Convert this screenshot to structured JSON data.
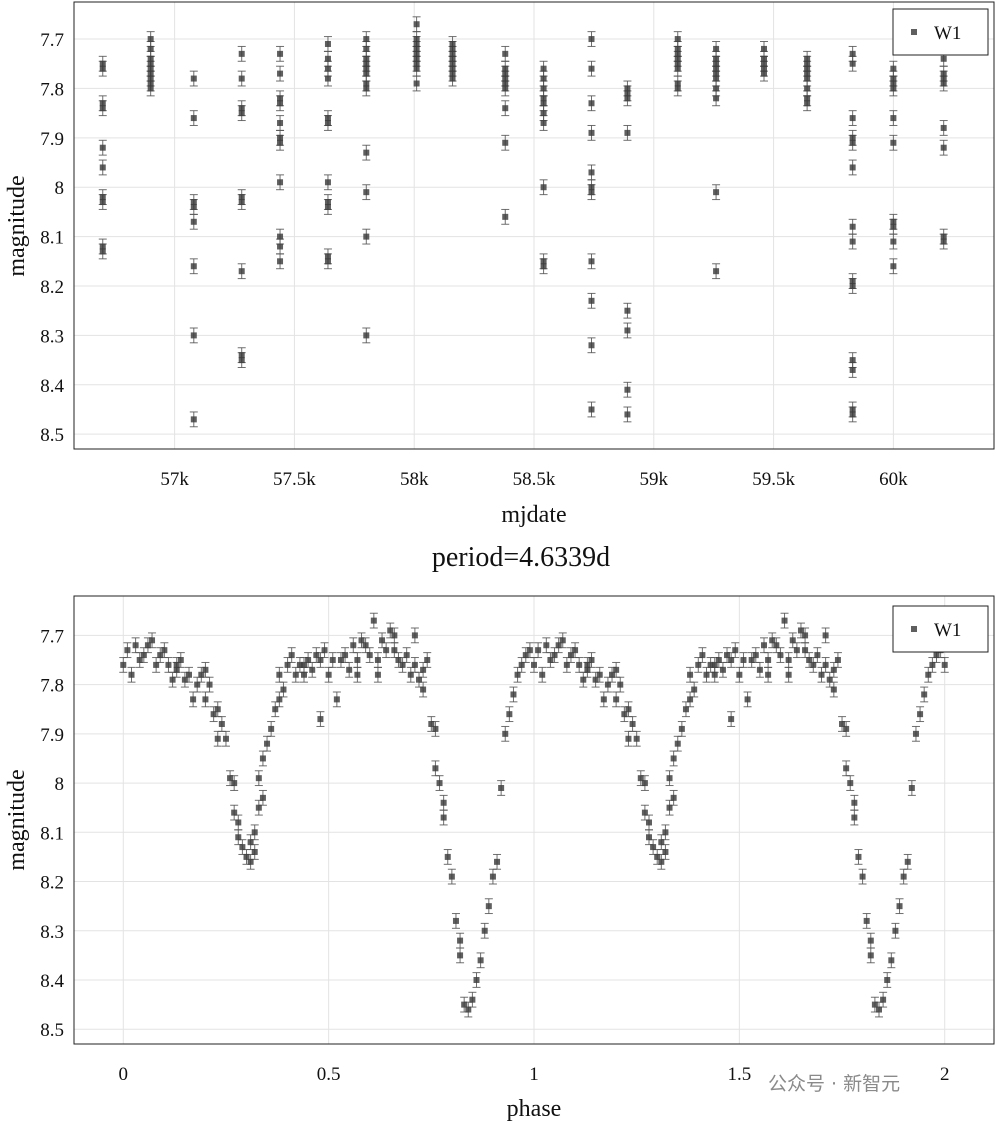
{
  "chart_data": [
    {
      "type": "scatter",
      "xlabel": "mjdate",
      "ylabel": "magnitude",
      "xlim": [
        56580,
        60420
      ],
      "ylim": [
        8.53,
        7.625
      ],
      "y_inverted": true,
      "grid": true,
      "legend": {
        "placement": "top-right",
        "entries": [
          "W1"
        ]
      },
      "xticks": [
        57000,
        57500,
        58000,
        58500,
        59000,
        59500,
        60000
      ],
      "xtick_labels": [
        "57k",
        "57.5k",
        "58k",
        "58.5k",
        "59k",
        "59.5k",
        "60k"
      ],
      "yticks": [
        7.7,
        7.8,
        7.9,
        8.0,
        8.1,
        8.2,
        8.3,
        8.4,
        8.5
      ],
      "ytick_labels": [
        "7.7",
        "7.8",
        "7.9",
        "8",
        "8.1",
        "8.2",
        "8.3",
        "8.4",
        "8.5"
      ],
      "error_bar": 0.015,
      "series": [
        {
          "name": "W1",
          "clusters": [
            {
              "x": 56700,
              "y": [
                7.75,
                7.76,
                7.83,
                7.84,
                7.92,
                7.96,
                8.02,
                8.03,
                8.12,
                8.13
              ]
            },
            {
              "x": 56900,
              "y": [
                7.7,
                7.72,
                7.74,
                7.75,
                7.76,
                7.77,
                7.78,
                7.79,
                7.8
              ]
            },
            {
              "x": 57080,
              "y": [
                7.78,
                7.86,
                8.03,
                8.04,
                8.07,
                8.16,
                8.3,
                8.47
              ]
            },
            {
              "x": 57280,
              "y": [
                7.73,
                7.78,
                7.84,
                7.85,
                8.02,
                8.03,
                8.17,
                8.34,
                8.35
              ]
            },
            {
              "x": 57440,
              "y": [
                7.73,
                7.77,
                7.82,
                7.83,
                7.87,
                7.9,
                7.91,
                7.99,
                8.1,
                8.12,
                8.15
              ]
            },
            {
              "x": 57640,
              "y": [
                7.71,
                7.74,
                7.76,
                7.78,
                7.86,
                7.87,
                7.99,
                8.03,
                8.04,
                8.14,
                8.15
              ]
            },
            {
              "x": 57800,
              "y": [
                7.7,
                7.72,
                7.74,
                7.75,
                7.76,
                7.77,
                7.79,
                7.8,
                7.93,
                8.01,
                8.1,
                8.3
              ]
            },
            {
              "x": 58010,
              "y": [
                7.67,
                7.7,
                7.71,
                7.72,
                7.73,
                7.74,
                7.75,
                7.76,
                7.79
              ]
            },
            {
              "x": 58160,
              "y": [
                7.71,
                7.72,
                7.73,
                7.74,
                7.75,
                7.76,
                7.77,
                7.78
              ]
            },
            {
              "x": 58380,
              "y": [
                7.73,
                7.76,
                7.77,
                7.78,
                7.79,
                7.8,
                7.84,
                7.91,
                8.06
              ]
            },
            {
              "x": 58540,
              "y": [
                7.76,
                7.78,
                7.8,
                7.82,
                7.83,
                7.85,
                7.87,
                8.0,
                8.15,
                8.16
              ]
            },
            {
              "x": 58740,
              "y": [
                7.7,
                7.76,
                7.83,
                7.89,
                7.97,
                8.0,
                8.01,
                8.15,
                8.23,
                8.32,
                8.45
              ]
            },
            {
              "x": 58890,
              "y": [
                7.8,
                7.81,
                7.82,
                7.89,
                8.25,
                8.29,
                8.41,
                8.46
              ]
            },
            {
              "x": 59100,
              "y": [
                7.7,
                7.72,
                7.73,
                7.74,
                7.75,
                7.76,
                7.79,
                7.8
              ]
            },
            {
              "x": 59260,
              "y": [
                7.72,
                7.74,
                7.75,
                7.76,
                7.77,
                7.78,
                7.8,
                7.82,
                8.01,
                8.17
              ]
            },
            {
              "x": 59460,
              "y": [
                7.72,
                7.74,
                7.75,
                7.76,
                7.77
              ]
            },
            {
              "x": 59640,
              "y": [
                7.74,
                7.75,
                7.76,
                7.77,
                7.78,
                7.8,
                7.82,
                7.83
              ]
            },
            {
              "x": 59830,
              "y": [
                7.73,
                7.75,
                7.86,
                7.9,
                7.91,
                7.96,
                8.08,
                8.11,
                8.19,
                8.2,
                8.35,
                8.37,
                8.45,
                8.46
              ]
            },
            {
              "x": 60000,
              "y": [
                7.76,
                7.78,
                7.79,
                7.8,
                7.86,
                7.91,
                8.07,
                8.08,
                8.11,
                8.16
              ]
            },
            {
              "x": 60210,
              "y": [
                7.74,
                7.77,
                7.78,
                7.79,
                7.88,
                7.92,
                8.1,
                8.11
              ]
            }
          ]
        }
      ]
    },
    {
      "type": "scatter",
      "title": "period=4.6339d",
      "xlabel": "phase",
      "ylabel": "magnitude",
      "xlim": [
        -0.12,
        2.12
      ],
      "ylim": [
        8.53,
        7.62
      ],
      "y_inverted": true,
      "grid": true,
      "legend": {
        "placement": "top-right",
        "entries": [
          "W1"
        ]
      },
      "xticks": [
        0,
        0.5,
        1,
        1.5,
        2
      ],
      "xtick_labels": [
        "0",
        "0.5",
        "1",
        "1.5",
        "2"
      ],
      "yticks": [
        7.7,
        7.8,
        7.9,
        8.0,
        8.1,
        8.2,
        8.3,
        8.4,
        8.5
      ],
      "ytick_labels": [
        "7.7",
        "7.8",
        "7.9",
        "8",
        "8.1",
        "8.2",
        "8.3",
        "8.4",
        "8.5"
      ],
      "error_bar": 0.015,
      "phase_repeat": 1,
      "series": [
        {
          "name": "W1",
          "points": [
            [
              0.0,
              7.76
            ],
            [
              0.01,
              7.73
            ],
            [
              0.02,
              7.78
            ],
            [
              0.03,
              7.72
            ],
            [
              0.04,
              7.75
            ],
            [
              0.05,
              7.74
            ],
            [
              0.06,
              7.72
            ],
            [
              0.07,
              7.71
            ],
            [
              0.08,
              7.76
            ],
            [
              0.09,
              7.74
            ],
            [
              0.1,
              7.73
            ],
            [
              0.11,
              7.76
            ],
            [
              0.12,
              7.79
            ],
            [
              0.13,
              7.77
            ],
            [
              0.14,
              7.75
            ],
            [
              0.15,
              7.79
            ],
            [
              0.16,
              7.78
            ],
            [
              0.17,
              7.83
            ],
            [
              0.18,
              7.8
            ],
            [
              0.19,
              7.78
            ],
            [
              0.2,
              7.83
            ],
            [
              0.21,
              7.8
            ],
            [
              0.22,
              7.86
            ],
            [
              0.23,
              7.91
            ],
            [
              0.23,
              7.85
            ],
            [
              0.24,
              7.88
            ],
            [
              0.25,
              7.91
            ],
            [
              0.26,
              7.99
            ],
            [
              0.27,
              8.0
            ],
            [
              0.27,
              8.06
            ],
            [
              0.28,
              8.08
            ],
            [
              0.28,
              8.11
            ],
            [
              0.29,
              8.13
            ],
            [
              0.3,
              8.15
            ],
            [
              0.31,
              8.16
            ],
            [
              0.31,
              8.12
            ],
            [
              0.32,
              8.14
            ],
            [
              0.32,
              8.1
            ],
            [
              0.33,
              8.05
            ],
            [
              0.33,
              7.99
            ],
            [
              0.34,
              8.03
            ],
            [
              0.34,
              7.95
            ],
            [
              0.35,
              7.92
            ],
            [
              0.36,
              7.89
            ],
            [
              0.37,
              7.85
            ],
            [
              0.38,
              7.83
            ],
            [
              0.38,
              7.78
            ],
            [
              0.39,
              7.81
            ],
            [
              0.4,
              7.76
            ],
            [
              0.41,
              7.74
            ],
            [
              0.42,
              7.78
            ],
            [
              0.43,
              7.76
            ],
            [
              0.44,
              7.76
            ],
            [
              0.45,
              7.75
            ],
            [
              0.46,
              7.77
            ],
            [
              0.47,
              7.74
            ],
            [
              0.48,
              7.75
            ],
            [
              0.49,
              7.73
            ],
            [
              0.5,
              7.78
            ],
            [
              0.51,
              7.75
            ],
            [
              0.52,
              7.83
            ],
            [
              0.53,
              7.75
            ],
            [
              0.54,
              7.74
            ],
            [
              0.55,
              7.77
            ],
            [
              0.56,
              7.72
            ],
            [
              0.57,
              7.75
            ],
            [
              0.58,
              7.71
            ],
            [
              0.59,
              7.72
            ],
            [
              0.6,
              7.74
            ],
            [
              0.61,
              7.67
            ],
            [
              0.62,
              7.75
            ],
            [
              0.63,
              7.71
            ],
            [
              0.64,
              7.73
            ],
            [
              0.65,
              7.69
            ],
            [
              0.66,
              7.73
            ],
            [
              0.67,
              7.75
            ],
            [
              0.68,
              7.76
            ],
            [
              0.69,
              7.74
            ],
            [
              0.7,
              7.78
            ],
            [
              0.71,
              7.76
            ],
            [
              0.72,
              7.79
            ],
            [
              0.73,
              7.81
            ],
            [
              0.73,
              7.77
            ],
            [
              0.74,
              7.75
            ],
            [
              0.75,
              7.88
            ],
            [
              0.76,
              7.89
            ],
            [
              0.76,
              7.97
            ],
            [
              0.77,
              8.0
            ],
            [
              0.78,
              8.04
            ],
            [
              0.78,
              8.07
            ],
            [
              0.79,
              8.15
            ],
            [
              0.8,
              8.19
            ],
            [
              0.81,
              8.28
            ],
            [
              0.82,
              8.32
            ],
            [
              0.82,
              8.35
            ],
            [
              0.83,
              8.45
            ],
            [
              0.84,
              8.46
            ],
            [
              0.85,
              8.44
            ],
            [
              0.86,
              8.4
            ],
            [
              0.87,
              8.36
            ],
            [
              0.88,
              8.3
            ],
            [
              0.89,
              8.25
            ],
            [
              0.9,
              8.19
            ],
            [
              0.91,
              8.16
            ],
            [
              0.92,
              8.01
            ],
            [
              0.93,
              7.9
            ],
            [
              0.94,
              7.86
            ],
            [
              0.95,
              7.82
            ],
            [
              0.96,
              7.78
            ],
            [
              0.97,
              7.76
            ],
            [
              0.98,
              7.74
            ],
            [
              0.99,
              7.73
            ],
            [
              0.66,
              7.7
            ],
            [
              0.48,
              7.87
            ],
            [
              0.13,
              7.76
            ],
            [
              0.2,
              7.77
            ],
            [
              0.44,
              7.78
            ],
            [
              0.57,
              7.78
            ],
            [
              0.62,
              7.78
            ],
            [
              0.71,
              7.7
            ]
          ]
        }
      ]
    }
  ],
  "watermark": "公众号 · 新智元"
}
